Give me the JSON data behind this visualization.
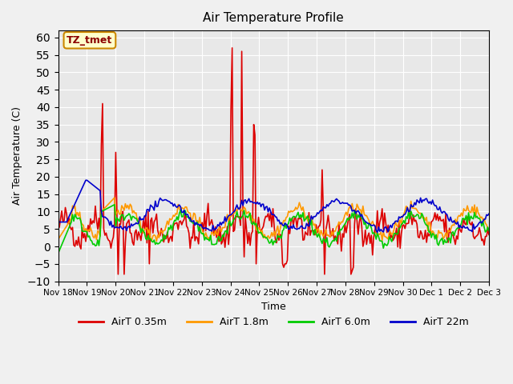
{
  "title": "Air Temperature Profile",
  "xlabel": "Time",
  "ylabel": "Air Temperature (C)",
  "ylim": [
    -10,
    62
  ],
  "yticks": [
    -10,
    -5,
    0,
    5,
    10,
    15,
    20,
    25,
    30,
    35,
    40,
    45,
    50,
    55,
    60
  ],
  "annotation": "TZ_tmet",
  "background_color": "#e8e8e8",
  "grid_color": "#ffffff",
  "legend_entries": [
    "AirT 0.35m",
    "AirT 1.8m",
    "AirT 6.0m",
    "AirT 22m"
  ],
  "line_colors": [
    "#dd0000",
    "#ff9900",
    "#00cc00",
    "#0000cc"
  ],
  "x_tick_labels": [
    "Nov 18",
    "Nov 19",
    "Nov 20",
    "Nov 21",
    "Nov 22",
    "Nov 23",
    "Nov 24",
    "Nov 25",
    "Nov 26",
    "Nov 27",
    "Nov 28",
    "Nov 29",
    "Nov 30",
    "Dec 1",
    "Dec 2",
    "Dec 3"
  ],
  "n_points": 360
}
